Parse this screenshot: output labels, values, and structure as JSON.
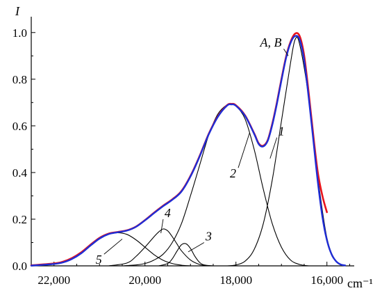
{
  "chart_data": {
    "type": "line",
    "title": "",
    "ylabel": "I",
    "xlabel": "cm⁻¹",
    "xlim": [
      22500,
      15400
    ],
    "ylim": [
      0,
      1.05
    ],
    "x_reversed": true,
    "xticks": [
      22000,
      20000,
      18000,
      16000
    ],
    "xtick_labels": [
      "22,000",
      "20,000",
      "18,000",
      "16,000"
    ],
    "yticks": [
      0.0,
      0.2,
      0.4,
      0.6,
      0.8,
      1.0
    ],
    "ytick_labels": [
      "0.0",
      "0.2",
      "0.4",
      "0.6",
      "0.8",
      "1.0"
    ],
    "colors": {
      "A": "#e8141c",
      "B": "#1f2dd6",
      "components": "#000000"
    },
    "series": [
      {
        "label": "A",
        "x": [
          22500,
          22000,
          21800,
          21600,
          21400,
          21200,
          21000,
          20800,
          20600,
          20400,
          20200,
          20000,
          19800,
          19600,
          19400,
          19200,
          19000,
          18800,
          18600,
          18400,
          18200,
          18100,
          18000,
          17800,
          17600,
          17500,
          17400,
          17300,
          17200,
          17100,
          17000,
          16900,
          16800,
          16700,
          16600,
          16500,
          16400,
          16300,
          16200,
          16100,
          16000
        ],
        "y": [
          0.002,
          0.01,
          0.018,
          0.034,
          0.058,
          0.09,
          0.12,
          0.138,
          0.145,
          0.152,
          0.168,
          0.196,
          0.228,
          0.258,
          0.285,
          0.32,
          0.385,
          0.47,
          0.565,
          0.64,
          0.688,
          0.694,
          0.688,
          0.645,
          0.568,
          0.525,
          0.515,
          0.54,
          0.61,
          0.7,
          0.8,
          0.895,
          0.96,
          0.995,
          0.985,
          0.9,
          0.74,
          0.56,
          0.4,
          0.3,
          0.23
        ]
      },
      {
        "label": "B",
        "x": [
          22500,
          22000,
          21800,
          21600,
          21400,
          21200,
          21000,
          20800,
          20600,
          20400,
          20200,
          20000,
          19800,
          19600,
          19400,
          19200,
          19000,
          18800,
          18600,
          18400,
          18200,
          18100,
          18000,
          17800,
          17600,
          17500,
          17400,
          17300,
          17200,
          17100,
          17000,
          16900,
          16800,
          16700,
          16600,
          16500,
          16400,
          16300,
          16200,
          16100,
          16000,
          15900,
          15800,
          15700,
          15600
        ],
        "y": [
          0.001,
          0.008,
          0.015,
          0.03,
          0.054,
          0.087,
          0.117,
          0.136,
          0.144,
          0.151,
          0.167,
          0.195,
          0.226,
          0.256,
          0.283,
          0.318,
          0.383,
          0.468,
          0.563,
          0.638,
          0.686,
          0.692,
          0.686,
          0.643,
          0.566,
          0.522,
          0.512,
          0.537,
          0.605,
          0.695,
          0.795,
          0.89,
          0.955,
          0.985,
          0.97,
          0.88,
          0.72,
          0.54,
          0.36,
          0.21,
          0.11,
          0.05,
          0.02,
          0.006,
          0.002
        ]
      },
      {
        "label": "1",
        "x": [
          18200,
          18000,
          17800,
          17600,
          17400,
          17200,
          17000,
          16800,
          16700,
          16600,
          16400,
          16200,
          16000,
          15800,
          15600
        ],
        "y": [
          0.0,
          0.004,
          0.02,
          0.07,
          0.18,
          0.37,
          0.62,
          0.87,
          0.97,
          0.95,
          0.72,
          0.38,
          0.12,
          0.02,
          0.0
        ]
      },
      {
        "label": "2",
        "x": [
          20500,
          20200,
          20000,
          19800,
          19600,
          19400,
          19200,
          19000,
          18800,
          18600,
          18400,
          18200,
          18100,
          18000,
          17800,
          17600,
          17400,
          17200,
          17000,
          16800,
          16600,
          16400
        ],
        "y": [
          0.0,
          0.004,
          0.01,
          0.025,
          0.05,
          0.1,
          0.18,
          0.3,
          0.43,
          0.56,
          0.65,
          0.69,
          0.692,
          0.685,
          0.63,
          0.5,
          0.33,
          0.18,
          0.08,
          0.025,
          0.006,
          0.0
        ]
      },
      {
        "label": "3",
        "x": [
          19700,
          19500,
          19400,
          19300,
          19200,
          19100,
          19000,
          18900,
          18800,
          18700,
          18500
        ],
        "y": [
          0.0,
          0.01,
          0.03,
          0.062,
          0.09,
          0.095,
          0.075,
          0.04,
          0.015,
          0.004,
          0.0
        ]
      },
      {
        "label": "4",
        "x": [
          20800,
          20400,
          20200,
          20000,
          19800,
          19700,
          19600,
          19500,
          19400,
          19300,
          19200,
          19000,
          18800,
          18600
        ],
        "y": [
          0.0,
          0.012,
          0.04,
          0.08,
          0.125,
          0.145,
          0.158,
          0.15,
          0.125,
          0.095,
          0.065,
          0.025,
          0.006,
          0.0
        ]
      },
      {
        "label": "5",
        "x": [
          22400,
          22000,
          21600,
          21200,
          21000,
          20800,
          20600,
          20400,
          20200,
          20000,
          19800,
          19600,
          19400,
          19200,
          19000
        ],
        "y": [
          0.0,
          0.008,
          0.03,
          0.085,
          0.115,
          0.135,
          0.142,
          0.135,
          0.112,
          0.08,
          0.048,
          0.024,
          0.01,
          0.003,
          0.0
        ]
      }
    ],
    "annotations": [
      {
        "text": "A, B",
        "at": [
          16850,
          0.9
        ],
        "label_at": [
          16950,
          0.93
        ]
      },
      {
        "text": "1",
        "at": [
          17250,
          0.46
        ],
        "label_at": [
          17100,
          0.55
        ]
      },
      {
        "text": "2",
        "at": [
          17700,
          0.57
        ],
        "label_at": [
          17950,
          0.42
        ]
      },
      {
        "text": "3",
        "at": [
          19050,
          0.06
        ],
        "label_at": [
          18700,
          0.1
        ]
      },
      {
        "text": "4",
        "at": [
          19650,
          0.14
        ],
        "label_at": [
          19600,
          0.2
        ]
      },
      {
        "text": "5",
        "at": [
          20500,
          0.115
        ],
        "label_at": [
          20900,
          0.05
        ]
      }
    ]
  }
}
